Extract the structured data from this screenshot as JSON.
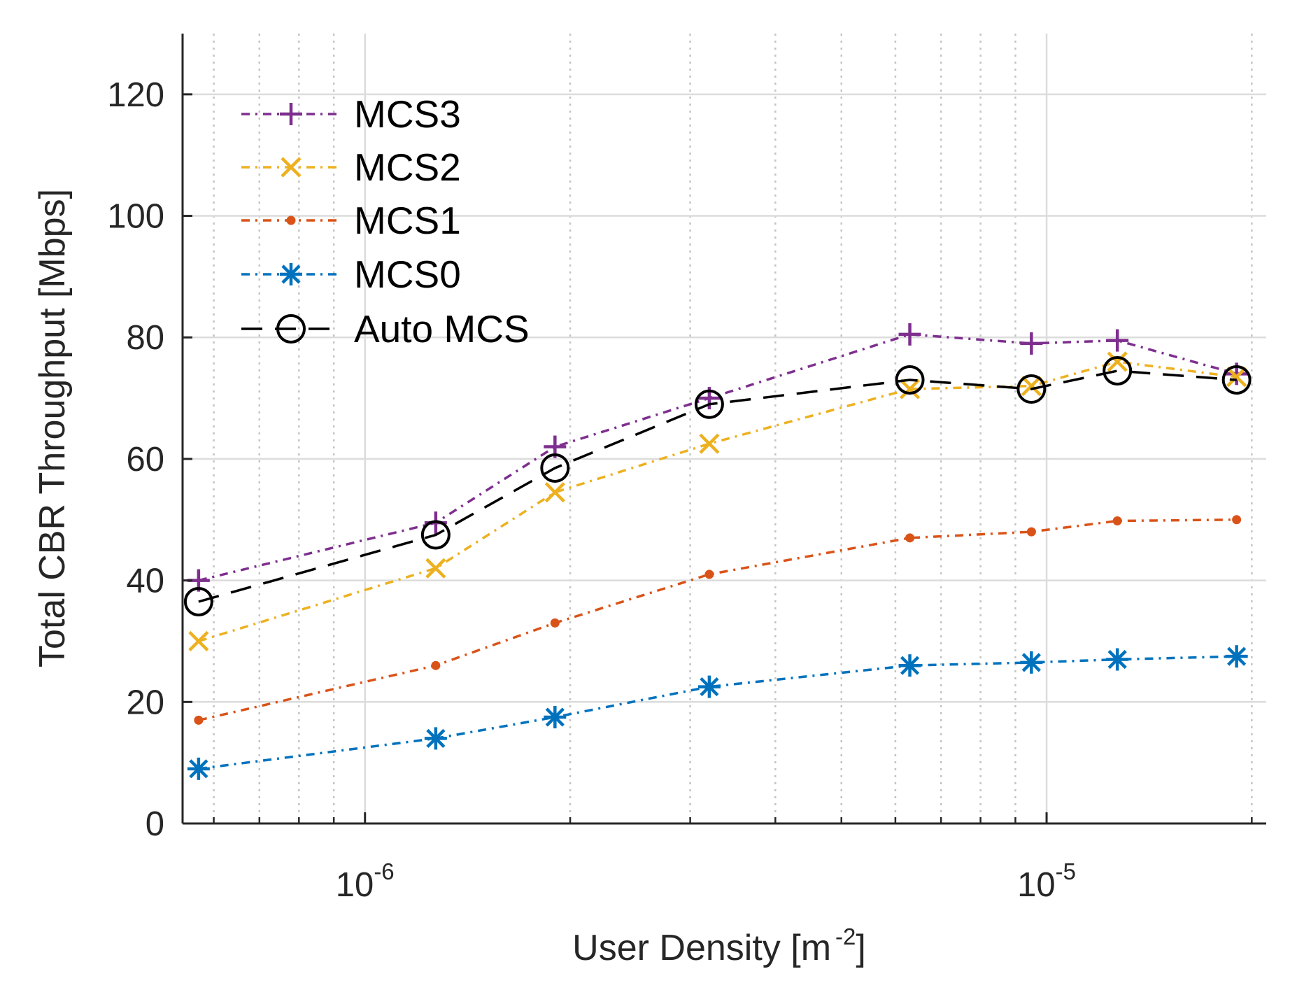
{
  "chart_data": {
    "type": "line",
    "x_scale": "log",
    "xlim": [
      5.4e-07,
      2.1e-05
    ],
    "ylim": [
      0,
      130
    ],
    "grid": true,
    "minor_grid_x": true,
    "xlabel": "User Density [m",
    "xlabel_sup": "-2",
    "xlabel_end": "]",
    "ylabel": "Total CBR Throughput [Mbps]",
    "y_ticks": [
      0,
      20,
      40,
      60,
      80,
      100,
      120
    ],
    "x_ticks": [
      {
        "value": 1e-06,
        "base": "10",
        "exp": "-6"
      },
      {
        "value": 1e-05,
        "base": "10",
        "exp": "-5"
      }
    ],
    "x": [
      5.7e-07,
      1.27e-06,
      1.9e-06,
      3.2e-06,
      6.3e-06,
      9.5e-06,
      1.27e-05,
      1.9e-05
    ],
    "legend_position": "top-left",
    "series": [
      {
        "name": "MCS3",
        "color": "#7E2F8E",
        "marker": "plus",
        "dash": "12,8,3,8",
        "values": [
          40,
          49.5,
          62,
          70,
          80.5,
          79,
          79.5,
          74
        ]
      },
      {
        "name": "MCS2",
        "color": "#EDB120",
        "marker": "x",
        "dash": "12,8,3,8",
        "values": [
          30,
          42,
          54.5,
          62.5,
          71.5,
          72,
          76,
          73.5
        ]
      },
      {
        "name": "MCS1",
        "color": "#D95319",
        "marker": "dot",
        "dash": "12,8,3,8",
        "values": [
          17,
          26,
          33,
          41,
          47,
          48,
          49.8,
          50
        ]
      },
      {
        "name": "MCS0",
        "color": "#0072BD",
        "marker": "star",
        "dash": "12,8,3,8",
        "values": [
          9,
          14,
          17.5,
          22.5,
          26,
          26.5,
          27,
          27.5
        ]
      },
      {
        "name": "Auto MCS",
        "color": "#000000",
        "marker": "circle",
        "dash": "30,18",
        "values": [
          36.5,
          47.5,
          58.5,
          69,
          73,
          71.5,
          74.5,
          73
        ]
      }
    ]
  }
}
